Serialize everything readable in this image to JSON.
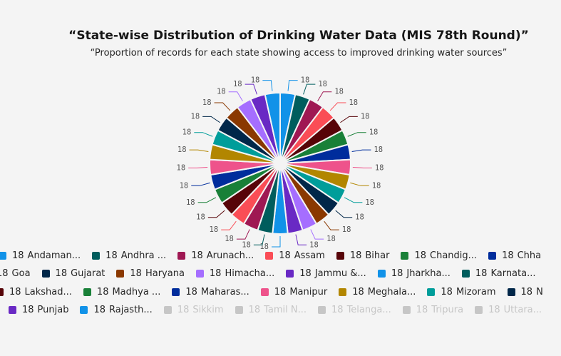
{
  "chart_data": {
    "type": "pie",
    "title": "“State-wise Distribution of Drinking Water Data (MIS 78th Round)”",
    "subtitle": "“Proportion of records for each state showing access to improved drinking water sources”",
    "categories": [
      "Andaman...",
      "Andhra ...",
      "Arunach...",
      "Assam",
      "Bihar",
      "Chandig...",
      "Chha",
      null,
      null,
      "Goa",
      "Gujarat",
      "Haryana",
      "Himacha...",
      "Jammu &...",
      "Jharkha...",
      "Karnata...",
      null,
      null,
      "Lakshad...",
      "Madhya ...",
      "Maharas...",
      "Manipur",
      "Meghala...",
      "Mizoram",
      "N",
      null,
      null,
      "Punjab",
      "Rajasth...",
      "Sikkim",
      "Tamil N...",
      "Telanga...",
      "Tripura",
      "Uttara..."
    ],
    "values": [
      18,
      18,
      18,
      18,
      18,
      18,
      18,
      18,
      18,
      18,
      18,
      18,
      18,
      18,
      18,
      18,
      18,
      18,
      18,
      18,
      18,
      18,
      18,
      18,
      18,
      18,
      18,
      18,
      18,
      18,
      18,
      18,
      18,
      18
    ],
    "disabled": [
      false,
      false,
      false,
      false,
      false,
      false,
      false,
      false,
      false,
      false,
      false,
      false,
      false,
      false,
      false,
      false,
      false,
      false,
      false,
      false,
      false,
      false,
      false,
      false,
      false,
      false,
      false,
      false,
      false,
      true,
      true,
      true,
      true,
      true
    ],
    "colors": [
      "#1192e8",
      "#005d5d",
      "#9f1853",
      "#fa4d56",
      "#570408",
      "#198038",
      "#002d9c",
      "#ee538b",
      "#b28600",
      "#009d9a",
      "#012749",
      "#8a3800",
      "#a56eff",
      "#6929c4",
      "#1192e8",
      "#005d5d",
      "#9f1853",
      "#fa4d56",
      "#570408",
      "#198038",
      "#002d9c",
      "#ee538b",
      "#b28600",
      "#009d9a",
      "#012749",
      "#8a3800",
      "#a56eff",
      "#6929c4",
      "#1192e8",
      "#c6c6c6",
      "#c6c6c6",
      "#c6c6c6",
      "#c6c6c6",
      "#c6c6c6"
    ]
  }
}
